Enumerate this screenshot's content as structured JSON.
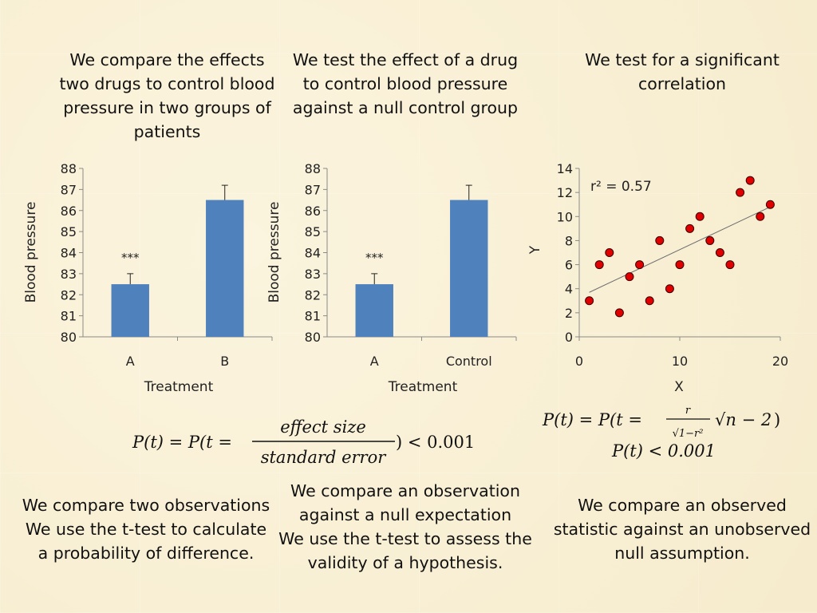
{
  "top_captions": [
    [
      "We compare the effects",
      "two drugs to control blood",
      "pressure in two groups of",
      "patients"
    ],
    [
      "We test the effect of a drug",
      "to control blood pressure",
      "against a null control group"
    ],
    [
      "We test for a significant",
      "correlation"
    ]
  ],
  "bottom_captions": [
    [
      "We compare two observations",
      "We use the t-test to calculate",
      "a probability of difference."
    ],
    [
      "We compare an observation",
      "against a null expectation",
      "We use the t-test to assess the",
      "validity of a hypothesis."
    ],
    [
      "We compare an observed",
      "statistic against an unobserved",
      "null assumption."
    ]
  ],
  "formula_left": {
    "lhs": "P(t) = P(t =",
    "numerator": "effect size",
    "denominator": "standard error",
    "rhs": ") < 0.001"
  },
  "formula_right": {
    "line1_lhs": "P(t) = P(t =",
    "numerator": "r",
    "denominator": "√1−r²",
    "radical": "√n − 2",
    "close": ")",
    "line2": "P(t) < 0.001"
  },
  "chart_data": [
    {
      "type": "bar",
      "title": "",
      "xlabel": "Treatment",
      "ylabel": "Blood pressure",
      "ylim": [
        80,
        88
      ],
      "yticks": [
        "80",
        "81",
        "82",
        "83",
        "84",
        "85",
        "86",
        "87",
        "88"
      ],
      "categories": [
        "A",
        "B"
      ],
      "values": [
        82.5,
        86.5
      ],
      "errors": [
        0.5,
        0.7
      ],
      "annotations": [
        "***",
        ""
      ],
      "bar_color": "#4f81bd"
    },
    {
      "type": "bar",
      "title": "",
      "xlabel": "Treatment",
      "ylabel": "Blood pressure",
      "ylim": [
        80,
        88
      ],
      "yticks": [
        "80",
        "81",
        "82",
        "83",
        "84",
        "85",
        "86",
        "87",
        "88"
      ],
      "categories": [
        "A",
        "Control"
      ],
      "values": [
        82.5,
        86.5
      ],
      "errors": [
        0.5,
        0.7
      ],
      "annotations": [
        "***",
        ""
      ],
      "bar_color": "#4f81bd"
    },
    {
      "type": "scatter",
      "title": "",
      "xlabel": "X",
      "ylabel": "Y",
      "xlim": [
        0,
        20
      ],
      "ylim": [
        0,
        14
      ],
      "xticks": [
        "0",
        "10",
        "20"
      ],
      "yticks": [
        "0",
        "2",
        "4",
        "6",
        "8",
        "10",
        "12",
        "14"
      ],
      "annotation": "r² = 0.57",
      "points": [
        [
          1,
          3
        ],
        [
          2,
          6
        ],
        [
          3,
          7
        ],
        [
          4,
          2
        ],
        [
          5,
          5
        ],
        [
          6,
          6
        ],
        [
          7,
          3
        ],
        [
          8,
          8
        ],
        [
          9,
          4
        ],
        [
          10,
          6
        ],
        [
          11,
          9
        ],
        [
          12,
          10
        ],
        [
          13,
          8
        ],
        [
          14,
          7
        ],
        [
          15,
          6
        ],
        [
          16,
          12
        ],
        [
          17,
          13
        ],
        [
          18,
          10
        ],
        [
          19,
          11
        ]
      ],
      "trendline": [
        [
          1,
          3.7
        ],
        [
          19,
          10.8
        ]
      ],
      "point_color": "#e00000"
    }
  ]
}
